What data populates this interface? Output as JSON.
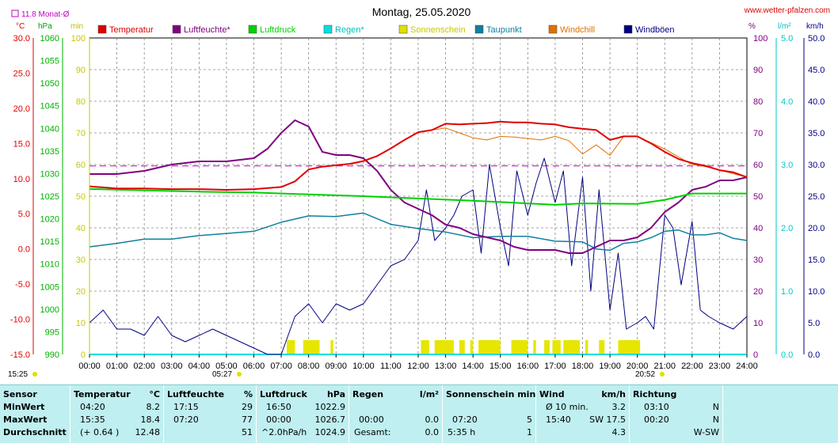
{
  "header": {
    "title": "Montag, 25.05.2020",
    "site": "www.wetter-pfalzen.com",
    "month_avg_label": "11.8 Monat-Ø"
  },
  "units": {
    "temp": "°C",
    "press": "hPa",
    "min": "min",
    "pct": "%",
    "rain": "l/m²",
    "wind": "km/h"
  },
  "legend": [
    {
      "label": "Temperatur",
      "color": "#e00000"
    },
    {
      "label": "Luftfeuchte*",
      "color": "#800080"
    },
    {
      "label": "Luftdruck",
      "color": "#00d000"
    },
    {
      "label": "Regen*",
      "color": "#00e0e0"
    },
    {
      "label": "Sonnenschein",
      "color": "#e0e000"
    },
    {
      "label": "Taupunkt",
      "color": "#1080a0"
    },
    {
      "label": "Windchill",
      "color": "#e07000"
    },
    {
      "label": "Windböen",
      "color": "#000080"
    }
  ],
  "axes": {
    "temp_ticks": [
      "30.0",
      "25.0",
      "20.0",
      "15.0",
      "10.0",
      "5.0",
      "0.0",
      "-5.0",
      "-10.0",
      "-15.0"
    ],
    "press_ticks": [
      "1060",
      "1055",
      "1050",
      "1045",
      "1040",
      "1035",
      "1030",
      "1025",
      "1020",
      "1015",
      "1010",
      "1005",
      "1000",
      "995",
      "990"
    ],
    "min_ticks": [
      "100",
      "90",
      "80",
      "70",
      "60",
      "50",
      "40",
      "30",
      "20",
      "10",
      "0"
    ],
    "pct_ticks": [
      "100",
      "90",
      "80",
      "70",
      "60",
      "50",
      "40",
      "30",
      "20",
      "10",
      "0"
    ],
    "rain_ticks": [
      "5.0",
      "4.0",
      "3.0",
      "2.0",
      "1.0",
      "0.0"
    ],
    "wind_ticks": [
      "50.0",
      "45.0",
      "40.0",
      "35.0",
      "30.0",
      "25.0",
      "20.0",
      "15.0",
      "10.0",
      "5.0",
      "0.0"
    ],
    "time_ticks": [
      "00:00",
      "01:00",
      "02:00",
      "03:00",
      "04:00",
      "05:00",
      "06:00",
      "07:00",
      "08:00",
      "09:00",
      "10:00",
      "11:00",
      "12:00",
      "13:00",
      "14:00",
      "15:00",
      "16:00",
      "17:00",
      "18:00",
      "19:00",
      "20:00",
      "21:00",
      "22:00",
      "23:00",
      "24:00"
    ],
    "sunrise": "05:27",
    "sunset": "20:52",
    "now_time": "15:25"
  },
  "chart_data": {
    "type": "line",
    "title": "Montag, 25.05.2020",
    "x_unit": "hour",
    "month_avg_temp": 11.8,
    "series": [
      {
        "name": "Temperatur",
        "unit": "°C",
        "color": "#e00000",
        "x": [
          0,
          1,
          2,
          3,
          4,
          5,
          6,
          7,
          7.5,
          8,
          8.5,
          9,
          9.5,
          10,
          10.5,
          11,
          11.5,
          12,
          12.5,
          13,
          13.5,
          14,
          14.5,
          15,
          15.5,
          16,
          16.5,
          17,
          17.5,
          18,
          18.5,
          19,
          19.5,
          20,
          20.5,
          21,
          21.5,
          22,
          22.5,
          23,
          23.5,
          24
        ],
        "values": [
          8.9,
          8.6,
          8.6,
          8.5,
          8.5,
          8.4,
          8.5,
          8.8,
          9.6,
          11.3,
          11.7,
          11.9,
          12.1,
          12.5,
          13.2,
          14.3,
          15.5,
          16.6,
          16.9,
          17.8,
          17.7,
          17.8,
          17.9,
          18.1,
          18.0,
          18.0,
          17.8,
          17.7,
          17.3,
          17.1,
          16.9,
          15.5,
          16.0,
          16.0,
          15.0,
          13.8,
          12.8,
          12.2,
          11.8,
          11.2,
          10.9,
          10.2
        ]
      },
      {
        "name": "Luftfeuchte*",
        "unit": "%",
        "color": "#800080",
        "x": [
          0,
          1,
          2,
          3,
          4,
          5,
          6,
          6.5,
          7,
          7.5,
          8,
          8.5,
          9,
          9.5,
          10,
          10.5,
          11,
          11.5,
          12,
          12.5,
          13,
          13.5,
          14,
          14.5,
          15,
          15.5,
          16,
          16.5,
          17,
          17.5,
          18,
          18.5,
          19,
          19.5,
          20,
          20.5,
          21,
          21.5,
          22,
          22.5,
          23,
          23.5,
          24
        ],
        "values": [
          57,
          57,
          58,
          60,
          61,
          61,
          62,
          65,
          70,
          74,
          72,
          64,
          63,
          63,
          62,
          58,
          52,
          48,
          46,
          44,
          41,
          40,
          38,
          37,
          36,
          34,
          33,
          33,
          33,
          32,
          32,
          34,
          36,
          36,
          37,
          40,
          45,
          48,
          52,
          53,
          55,
          55,
          56
        ]
      },
      {
        "name": "Luftdruck",
        "unit": "hPa",
        "color": "#00d000",
        "x": [
          0,
          2,
          4,
          6,
          8,
          10,
          12,
          14,
          16,
          17,
          18,
          20,
          21,
          22,
          24
        ],
        "values": [
          1026.6,
          1026.3,
          1026.0,
          1025.8,
          1025.4,
          1025.0,
          1024.5,
          1024.0,
          1023.4,
          1023.1,
          1023.4,
          1023.3,
          1024.2,
          1025.6,
          1025.6
        ]
      },
      {
        "name": "Regen*",
        "unit": "l/m²",
        "color": "#00e0e0",
        "x": [
          0,
          24
        ],
        "values": [
          0.0,
          0.0
        ]
      },
      {
        "name": "Sonnenschein",
        "unit": "min",
        "color": "#e0e000",
        "intervals": [
          [
            7.2,
            7.5
          ],
          [
            7.8,
            8.4
          ],
          [
            8.8,
            8.9
          ],
          [
            12.1,
            12.4
          ],
          [
            12.6,
            13.3
          ],
          [
            13.5,
            13.7
          ],
          [
            13.9,
            14.0
          ],
          [
            14.2,
            15.0
          ],
          [
            15.4,
            16.0
          ],
          [
            16.2,
            16.3
          ],
          [
            16.6,
            16.8
          ],
          [
            16.9,
            17.2
          ],
          [
            17.3,
            17.9
          ],
          [
            18.1,
            18.2
          ],
          [
            18.6,
            18.8
          ],
          [
            19.3,
            20.1
          ]
        ]
      },
      {
        "name": "Taupunkt",
        "unit": "°C",
        "color": "#1080a0",
        "x": [
          0,
          1,
          2,
          3,
          4,
          5,
          6,
          7,
          8,
          9,
          10,
          11,
          12,
          13,
          14,
          15,
          16,
          17,
          18,
          18.5,
          19,
          19.5,
          20,
          20.5,
          21,
          21.5,
          22,
          22.5,
          23,
          23.5,
          24
        ],
        "values": [
          0.3,
          0.8,
          1.4,
          1.4,
          1.9,
          2.2,
          2.5,
          3.8,
          4.7,
          4.6,
          5.1,
          3.5,
          2.9,
          2.4,
          1.6,
          1.8,
          1.8,
          1.1,
          1.0,
          0.0,
          -0.2,
          0.8,
          1.0,
          1.6,
          2.5,
          2.7,
          2.0,
          2.0,
          2.3,
          1.5,
          1.2
        ]
      },
      {
        "name": "Windchill",
        "unit": "°C",
        "color": "#e07000",
        "x": [
          12,
          13,
          13.5,
          14,
          14.5,
          15,
          15.5,
          16,
          16.5,
          17,
          17.5,
          18,
          18.5,
          19,
          19.5,
          20,
          21,
          22,
          22.5,
          24
        ],
        "values": [
          16.6,
          17.2,
          16.5,
          15.8,
          15.5,
          16.0,
          15.9,
          15.7,
          15.5,
          16.0,
          15.4,
          13.5,
          14.8,
          13.3,
          16.0,
          16.0,
          14.2,
          12.0,
          11.7,
          10.2
        ]
      },
      {
        "name": "Windböen",
        "unit": "km/h",
        "color": "#000080",
        "x": [
          0,
          0.5,
          1,
          1.5,
          2,
          2.5,
          3,
          3.5,
          4,
          4.5,
          5,
          5.5,
          6,
          6.5,
          7,
          7.5,
          8,
          8.5,
          9,
          9.5,
          10,
          10.5,
          11,
          11.5,
          12,
          12.3,
          12.6,
          13,
          13.3,
          13.6,
          14,
          14.3,
          14.6,
          15,
          15.3,
          15.6,
          16,
          16.3,
          16.6,
          17,
          17.3,
          17.6,
          18,
          18.3,
          18.6,
          19,
          19.3,
          19.6,
          20,
          20.3,
          20.6,
          21,
          21.3,
          21.6,
          22,
          22.3,
          22.6,
          23,
          23.5,
          24
        ],
        "values": [
          5,
          7,
          4,
          4,
          3,
          6,
          3,
          2,
          3,
          4,
          3,
          2,
          1,
          0,
          0,
          6,
          8,
          5,
          8,
          7,
          8,
          11,
          14,
          15,
          18,
          26,
          18,
          20,
          22,
          25,
          26,
          16,
          30,
          20,
          14,
          29,
          22,
          27,
          31,
          24,
          29,
          14,
          28,
          10,
          26,
          7,
          16,
          4,
          5,
          6,
          4,
          22,
          20,
          11,
          21,
          7,
          6,
          5,
          4,
          6
        ]
      }
    ]
  },
  "stats": {
    "sensor": {
      "title": "Sensor",
      "rows": [
        "MinWert",
        "MaxWert",
        "Durchschnitt"
      ]
    },
    "temperatur": {
      "title": "Temperatur",
      "unit": "°C",
      "rows": [
        {
          "time": "04:20",
          "val": "8.2"
        },
        {
          "time": "15:35",
          "val": "18.4"
        },
        {
          "time": "(+ 0.64 )",
          "val": "12.48"
        }
      ]
    },
    "luftfeuchte": {
      "title": "Luftfeuchte",
      "unit": "%",
      "rows": [
        {
          "time": "17:15",
          "val": "29"
        },
        {
          "time": "07:20",
          "val": "77"
        },
        {
          "time": "",
          "val": "51"
        }
      ]
    },
    "luftdruck": {
      "title": "Luftdruck",
      "unit": "hPa",
      "rows": [
        {
          "time": "16:50",
          "val": "1022.9"
        },
        {
          "time": "00:00",
          "val": "1026.7"
        },
        {
          "time": "^2.0hPa/h",
          "val": "1024.9"
        }
      ]
    },
    "regen": {
      "title": "Regen",
      "unit": "l/m²",
      "rows": [
        {
          "time": "",
          "val": ""
        },
        {
          "time": "00:00",
          "val": "0.0"
        },
        {
          "time": "Gesamt:",
          "val": "0.0"
        }
      ]
    },
    "sonne": {
      "title": "Sonnenschein min",
      "unit": "",
      "rows": [
        {
          "time": "",
          "val": ""
        },
        {
          "time": "07:20",
          "val": "5"
        },
        {
          "time": "5:35 h",
          "val": "1"
        }
      ]
    },
    "wind": {
      "title": "Wind",
      "unit": "km/h",
      "rows": [
        {
          "time": "Ø 10 min.",
          "val": "3.2"
        },
        {
          "time": "15:40",
          "val": "SW 17.5"
        },
        {
          "time": "",
          "val": "4.3"
        }
      ]
    },
    "richtung": {
      "title": "Richtung",
      "unit": "",
      "rows": [
        {
          "time": "03:10",
          "val": "N"
        },
        {
          "time": "00:20",
          "val": "N"
        },
        {
          "time": "",
          "val": "W-SW"
        }
      ]
    }
  }
}
